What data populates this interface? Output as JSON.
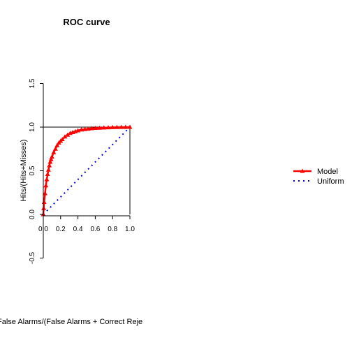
{
  "chart_data": {
    "type": "line",
    "title": "ROC curve",
    "xlabel": "False Alarms/(False Alarms + Correct Reje",
    "ylabel": "Hits/(Hits+Misses)",
    "xlim": [
      0,
      1
    ],
    "ylim": [
      -0.5,
      1.5
    ],
    "x_ticks": [
      "0.0",
      "0.2",
      "0.4",
      "0.6",
      "0.8",
      "1.0"
    ],
    "y_ticks": [
      "-0.5",
      "0.0",
      "0.5",
      "1.0",
      "1.5"
    ],
    "grid": false,
    "legend_position": "right",
    "series": [
      {
        "name": "Model",
        "color": "#ff0000",
        "style": "solid-with-markers",
        "x": [
          0.0,
          0.005,
          0.01,
          0.02,
          0.03,
          0.04,
          0.05,
          0.06,
          0.07,
          0.08,
          0.09,
          0.1,
          0.12,
          0.14,
          0.16,
          0.18,
          0.2,
          0.22,
          0.25,
          0.28,
          0.31,
          0.34,
          0.37,
          0.4,
          0.44,
          0.48,
          0.52,
          0.56,
          0.6,
          0.65,
          0.7,
          0.75,
          0.8,
          0.85,
          0.9,
          0.95,
          1.0
        ],
        "y": [
          0.0,
          0.07,
          0.14,
          0.24,
          0.33,
          0.4,
          0.46,
          0.51,
          0.56,
          0.6,
          0.63,
          0.66,
          0.71,
          0.75,
          0.79,
          0.82,
          0.84,
          0.86,
          0.89,
          0.91,
          0.93,
          0.94,
          0.95,
          0.96,
          0.97,
          0.975,
          0.98,
          0.985,
          0.988,
          0.99,
          0.993,
          0.995,
          0.997,
          0.998,
          0.999,
          0.999,
          1.0
        ]
      },
      {
        "name": "Uniform",
        "color": "#0000cd",
        "style": "dotted",
        "x": [
          0,
          1
        ],
        "y": [
          0,
          1
        ]
      }
    ],
    "reference_line_y": 1.0
  }
}
